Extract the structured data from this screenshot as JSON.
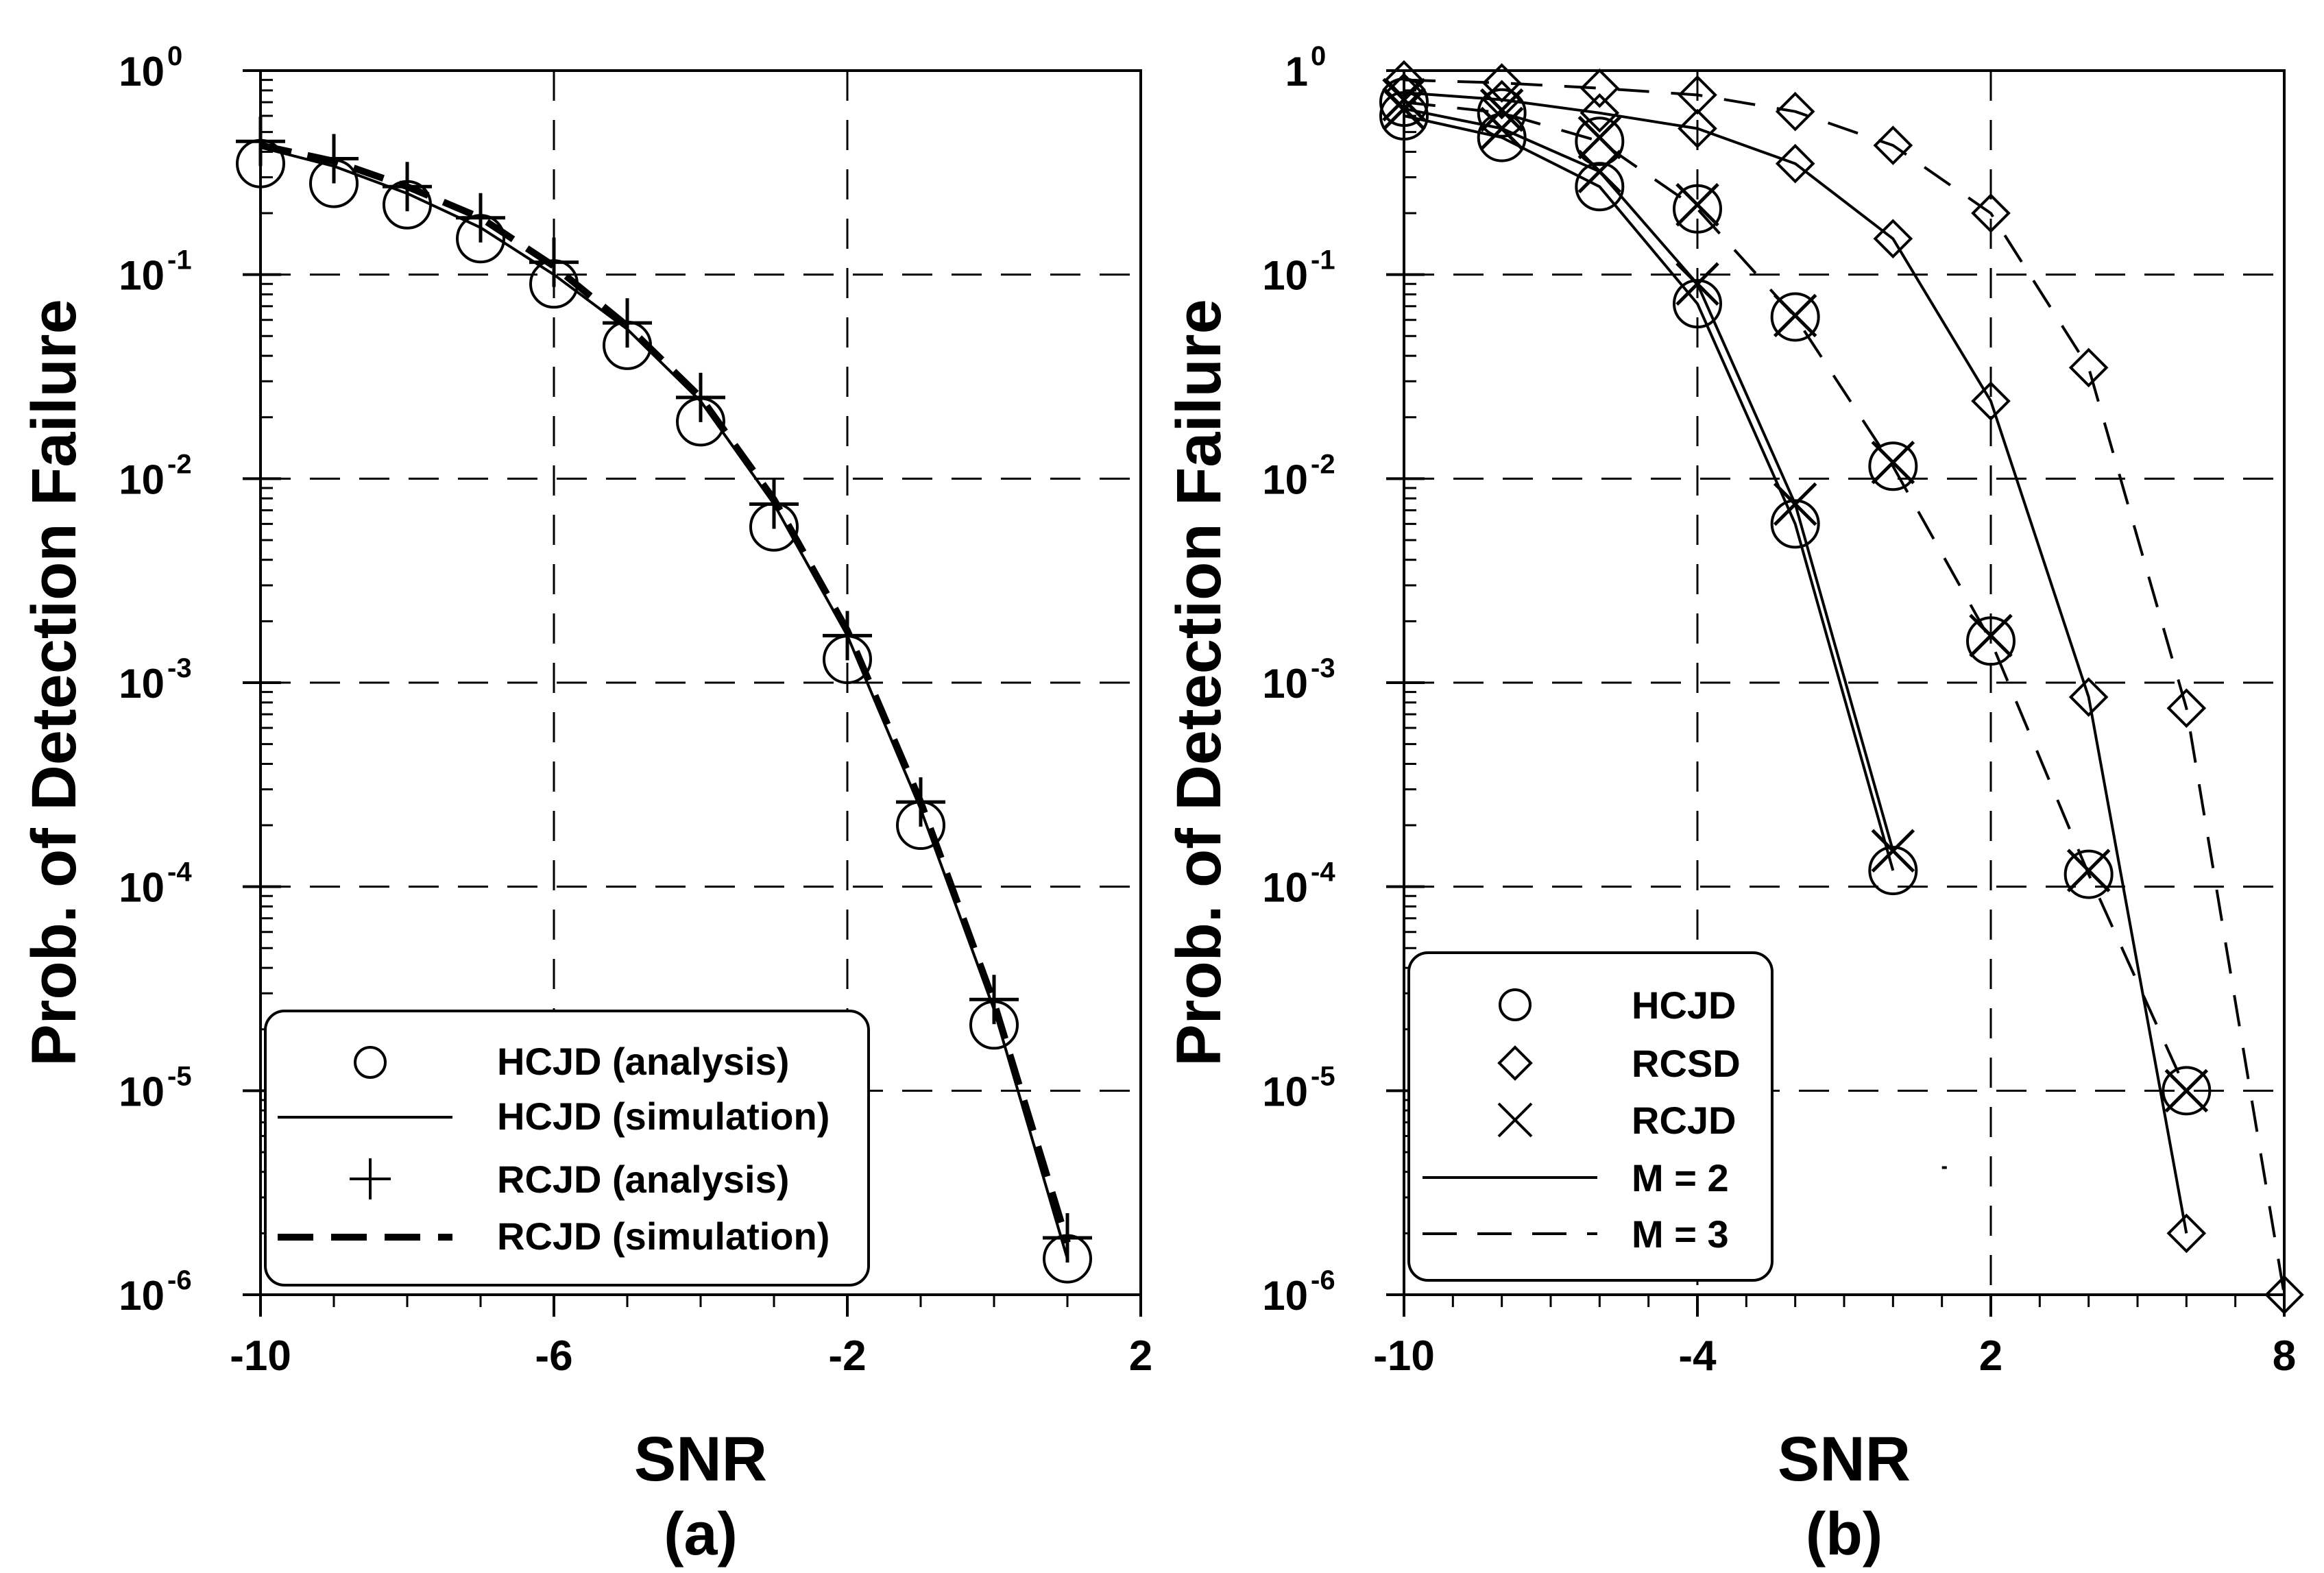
{
  "chart_data": [
    {
      "type": "line",
      "panel_label": "(a)",
      "xlabel": "SNR",
      "ylabel": "Prob. of Detection Failure",
      "xscale": "linear",
      "yscale": "log",
      "xlim": [
        -10,
        2
      ],
      "ylim": [
        1e-06,
        1
      ],
      "x_major_ticks": [
        -10,
        -6,
        -2,
        2
      ],
      "x_tick_labels": [
        "-10",
        "-6",
        "-2",
        "2"
      ],
      "x_minor_step": 1,
      "y_ticks": [
        {
          "base": "10",
          "exp": "0"
        },
        {
          "base": "10",
          "exp": "-1"
        },
        {
          "base": "10",
          "exp": "-2"
        },
        {
          "base": "10",
          "exp": "-3"
        },
        {
          "base": "10",
          "exp": "-4"
        },
        {
          "base": "10",
          "exp": "-5"
        },
        {
          "base": "10",
          "exp": "-6"
        }
      ],
      "grid": "dashed, major ticks",
      "legend_position": "bottom-right",
      "series": [
        {
          "name": "HCJD (analysis)",
          "style": "circle-markers",
          "x": [
            -10,
            -9,
            -8,
            -7,
            -6,
            -5,
            -4,
            -3,
            -2,
            -1,
            0,
            1
          ],
          "y": [
            0.35,
            0.28,
            0.22,
            0.15,
            0.09,
            0.045,
            0.019,
            0.0058,
            0.0013,
            0.0002,
            2.1e-05,
            1.5e-06
          ]
        },
        {
          "name": "HCJD (simulation)",
          "style": "solid-thin",
          "x": [
            -10,
            -9,
            -8,
            -7,
            -6,
            -5,
            -4,
            -3,
            -2,
            -1,
            0,
            1
          ],
          "y": [
            0.42,
            0.34,
            0.25,
            0.17,
            0.1,
            0.054,
            0.024,
            0.0075,
            0.0017,
            0.00024,
            2.5e-05,
            1.5e-06
          ]
        },
        {
          "name": "RCJD (analysis)",
          "style": "plus-markers",
          "x": [
            -10,
            -9,
            -8,
            -7,
            -6,
            -5,
            -4,
            -3,
            -2,
            -1,
            0,
            1
          ],
          "y": [
            0.45,
            0.37,
            0.27,
            0.19,
            0.115,
            0.058,
            0.025,
            0.0075,
            0.0017,
            0.00026,
            2.8e-05,
            1.9e-06
          ]
        },
        {
          "name": "RCJD (simulation)",
          "style": "dashed-thick",
          "x": [
            -10,
            -9,
            -8,
            -7,
            -6,
            -5,
            -4,
            -3,
            -2,
            -1,
            0,
            1
          ],
          "y": [
            0.43,
            0.36,
            0.27,
            0.19,
            0.11,
            0.056,
            0.025,
            0.0079,
            0.0018,
            0.00026,
            2.7e-05,
            1.8e-06
          ]
        }
      ]
    },
    {
      "type": "line",
      "panel_label": "(b)",
      "xlabel": "SNR",
      "ylabel": "Prob. of Detection Failure",
      "xscale": "linear",
      "yscale": "log",
      "xlim": [
        -10,
        8
      ],
      "ylim": [
        1e-06,
        1
      ],
      "x_major_ticks": [
        -10,
        -4,
        2,
        8
      ],
      "x_tick_labels": [
        "-10",
        "-4",
        "2",
        "8"
      ],
      "x_minor_step": 1,
      "y_ticks": [
        {
          "base": "1",
          "exp": "0",
          "note": "printed as 10^0 style"
        },
        {
          "base": "10",
          "exp": "-1"
        },
        {
          "base": "10",
          "exp": "-2"
        },
        {
          "base": "10",
          "exp": "-3"
        },
        {
          "base": "10",
          "exp": "-4"
        },
        {
          "base": "10",
          "exp": "-5"
        },
        {
          "base": "10",
          "exp": "-6"
        }
      ],
      "grid": "dashed, major ticks",
      "legend_position": "bottom-left",
      "legend_entries": [
        {
          "label": "HCJD",
          "symbol": "circle"
        },
        {
          "label": "RCSD",
          "symbol": "diamond"
        },
        {
          "label": "RCJD",
          "symbol": "cross"
        },
        {
          "label": "M = 2",
          "symbol": "solid-line"
        },
        {
          "label": "M = 3",
          "symbol": "dashed-line"
        }
      ],
      "series": [
        {
          "name": "HCJD M=2",
          "marker": "circle",
          "line": "solid",
          "show_line": true,
          "x": [
            -10,
            -8,
            -6,
            -4,
            -2,
            0
          ],
          "y": [
            0.6,
            0.47,
            0.27,
            0.072,
            0.006,
            0.00012
          ]
        },
        {
          "name": "RCJD M=2",
          "marker": "cross",
          "line": "solid",
          "show_line": true,
          "x": [
            -10,
            -8,
            -6,
            -4,
            -2,
            0
          ],
          "y": [
            0.65,
            0.52,
            0.32,
            0.09,
            0.0075,
            0.00015
          ]
        },
        {
          "name": "M=2 line tail",
          "line": "solid",
          "show_line": true,
          "markers": false,
          "x": [
            1,
            1.1
          ],
          "y": [
            4.2e-06,
            4.2e-06
          ]
        },
        {
          "name": "HCJD M=3",
          "marker": "circle",
          "line": "dashed",
          "show_line": true,
          "x": [
            -10,
            -8,
            -6,
            -4,
            -2,
            0,
            2,
            4,
            6
          ],
          "y": [
            0.7,
            0.62,
            0.45,
            0.21,
            0.062,
            0.0115,
            0.0016,
            0.000115,
            1e-05
          ]
        },
        {
          "name": "RCJD M=3",
          "marker": "cross",
          "line": "dashed",
          "show_line": false,
          "x": [
            -10,
            -8,
            -6,
            -4,
            -2,
            0,
            2,
            4,
            6
          ],
          "y": [
            0.72,
            0.64,
            0.47,
            0.22,
            0.063,
            0.012,
            0.0017,
            0.00012,
            1e-05
          ]
        },
        {
          "name": "RCSD M=2",
          "marker": "diamond",
          "line": "solid",
          "show_line": true,
          "x": [
            -10,
            -8,
            -6,
            -4,
            -2,
            0,
            2,
            4,
            6
          ],
          "y": [
            0.78,
            0.72,
            0.62,
            0.52,
            0.35,
            0.15,
            0.024,
            0.00085,
            2e-06
          ]
        },
        {
          "name": "RCSD M=3",
          "marker": "diamond",
          "line": "dashed",
          "show_line": true,
          "x": [
            -10,
            -8,
            -6,
            -4,
            -2,
            0,
            2,
            4,
            6,
            8
          ],
          "y": [
            0.9,
            0.87,
            0.82,
            0.76,
            0.63,
            0.43,
            0.2,
            0.035,
            0.00075,
            1e-06
          ]
        }
      ]
    }
  ]
}
